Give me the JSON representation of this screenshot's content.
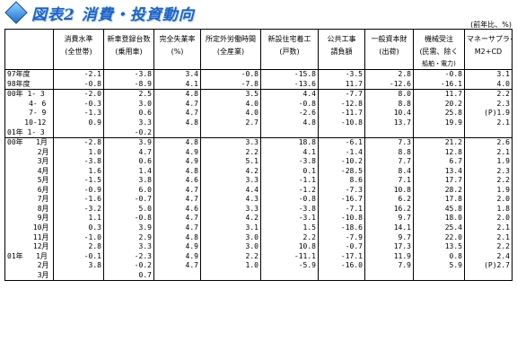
{
  "title": "図表2 消費・投資動向",
  "unit": "(前年比、%)",
  "columns": [
    {
      "l1": "消費水準",
      "l2": "(全世帯)",
      "l3": ""
    },
    {
      "l1": "新車登録台数",
      "l2": "(乗用車)",
      "l3": ""
    },
    {
      "l1": "完全失業率",
      "l2": "(%)",
      "l3": ""
    },
    {
      "l1": "所定外労働時間",
      "l2": "(全産業)",
      "l3": ""
    },
    {
      "l1": "新設住宅着工",
      "l2": "(戸数)",
      "l3": ""
    },
    {
      "l1": "公共工事",
      "l2": "請負額",
      "l3": ""
    },
    {
      "l1": "一般資本財",
      "l2": "(出荷)",
      "l3": ""
    },
    {
      "l1": "機械受注",
      "l2": "(民需、除く",
      "l3": "船舶・電力)"
    },
    {
      "l1": "マネーサプライ",
      "l2": "M2+CD",
      "l3": ""
    }
  ],
  "sections": [
    [
      {
        "label": "97年度",
        "v": [
          "-2.1",
          "-3.8",
          "3.4",
          "-0.8",
          "-15.8",
          "-3.5",
          "2.8",
          "-0.8",
          "3.1"
        ]
      },
      {
        "label": "98年度",
        "v": [
          "-0.8",
          "-8.9",
          "4.1",
          "-7.8",
          "-13.6",
          "11.7",
          "-12.6",
          "-16.1",
          "4.0"
        ]
      }
    ],
    [
      {
        "label": "00年 1- 3",
        "v": [
          "-2.0",
          "2.5",
          "4.8",
          "3.5",
          "4.4",
          "-7.7",
          "8.0",
          "11.7",
          "2.2"
        ]
      },
      {
        "label": "     4- 6",
        "v": [
          "-0.3",
          "3.0",
          "4.7",
          "4.0",
          "-0.8",
          "-12.8",
          "8.8",
          "20.2",
          "2.3"
        ]
      },
      {
        "label": "     7- 9",
        "v": [
          "-1.3",
          "0.6",
          "4.7",
          "4.0",
          "-2.6",
          "-11.7",
          "10.4",
          "25.8",
          "(P)1.9"
        ]
      },
      {
        "label": "    10-12",
        "v": [
          "0.9",
          "3.3",
          "4.8",
          "2.7",
          "4.8",
          "-10.8",
          "13.7",
          "19.9",
          "2.1"
        ]
      },
      {
        "label": "01年 1- 3",
        "v": [
          "",
          "-0.2",
          "",
          "",
          "",
          "",
          "",
          "",
          ""
        ]
      }
    ],
    [
      {
        "label": "00年   1月",
        "v": [
          "-2.8",
          "3.9",
          "4.8",
          "3.3",
          "18.8",
          "-6.1",
          "7.3",
          "21.2",
          "2.6"
        ]
      },
      {
        "label": "       2月",
        "v": [
          "1.0",
          "4.7",
          "4.9",
          "2.2",
          "4.1",
          "-1.4",
          "8.8",
          "12.8",
          "2.1"
        ]
      },
      {
        "label": "       3月",
        "v": [
          "-3.8",
          "0.6",
          "4.9",
          "5.1",
          "-3.8",
          "-10.2",
          "7.7",
          "6.7",
          "1.9"
        ]
      },
      {
        "label": "       4月",
        "v": [
          "1.6",
          "1.4",
          "4.8",
          "4.2",
          "0.1",
          "-28.5",
          "8.4",
          "13.4",
          "2.3"
        ]
      },
      {
        "label": "       5月",
        "v": [
          "-1.5",
          "3.8",
          "4.6",
          "3.3",
          "-1.1",
          "8.6",
          "7.1",
          "17.7",
          "2.2"
        ]
      },
      {
        "label": "       6月",
        "v": [
          "-0.9",
          "6.0",
          "4.7",
          "4.4",
          "-1.2",
          "-7.3",
          "10.8",
          "28.2",
          "1.9"
        ]
      },
      {
        "label": "       7月",
        "v": [
          "-1.6",
          "-0.7",
          "4.7",
          "4.3",
          "-0.8",
          "-16.7",
          "6.2",
          "17.8",
          "2.0"
        ]
      },
      {
        "label": "       8月",
        "v": [
          "-3.2",
          "5.0",
          "4.6",
          "3.3",
          "-3.8",
          "-7.1",
          "16.2",
          "45.8",
          "1.8"
        ]
      },
      {
        "label": "       9月",
        "v": [
          "1.1",
          "-0.8",
          "4.7",
          "4.2",
          "-3.1",
          "-10.8",
          "9.7",
          "18.0",
          "2.0"
        ]
      },
      {
        "label": "      10月",
        "v": [
          "0.3",
          "3.9",
          "4.7",
          "3.1",
          "1.5",
          "-18.6",
          "14.1",
          "25.4",
          "2.1"
        ]
      },
      {
        "label": "      11月",
        "v": [
          "-1.0",
          "2.9",
          "4.8",
          "3.0",
          "2.2",
          "-7.9",
          "9.7",
          "22.0",
          "2.1"
        ]
      },
      {
        "label": "      12月",
        "v": [
          "2.8",
          "3.3",
          "4.9",
          "3.0",
          "10.8",
          "-0.7",
          "17.3",
          "13.5",
          "2.2"
        ]
      },
      {
        "label": "01年   1月",
        "v": [
          "-0.1",
          "-2.3",
          "4.9",
          "2.2",
          "-11.1",
          "-17.1",
          "11.9",
          "0.8",
          "2.4"
        ]
      },
      {
        "label": "       2月",
        "v": [
          "3.8",
          "-0.2",
          "4.7",
          "1.0",
          "-5.9",
          "-16.0",
          "7.9",
          "5.9",
          "(P)2.7"
        ]
      },
      {
        "label": "       3月",
        "v": [
          "",
          "0.7",
          "",
          "",
          "",
          "",
          "",
          "",
          ""
        ]
      }
    ]
  ]
}
